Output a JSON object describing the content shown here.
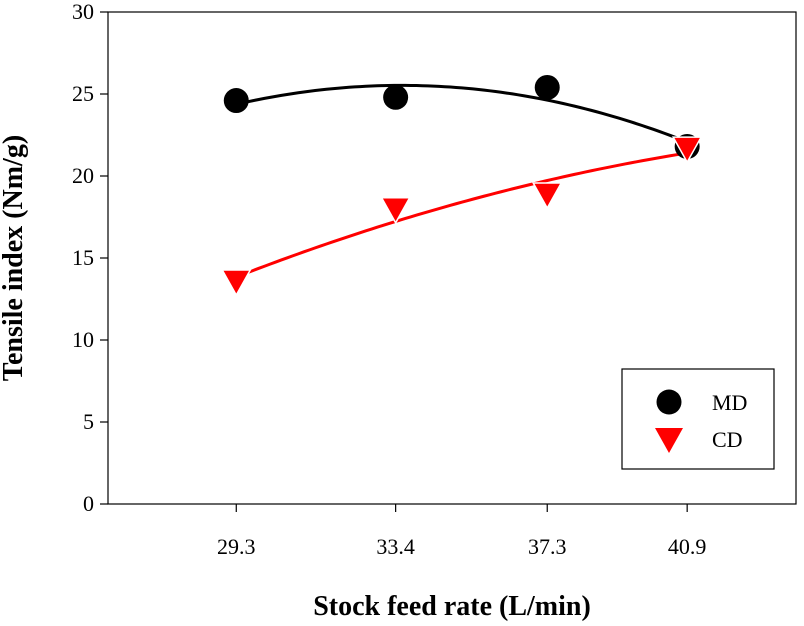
{
  "chart_data": {
    "type": "scatter",
    "xlabel": "Stock feed rate (L/min)",
    "ylabel": "Tensile index (Nm/g)",
    "categories": [
      "29.3",
      "33.4",
      "37.3",
      "40.9"
    ],
    "x": [
      29.3,
      33.4,
      37.3,
      40.9
    ],
    "ylim": [
      0,
      30
    ],
    "yticks": [
      0,
      5,
      10,
      15,
      20,
      25,
      30
    ],
    "xlim": [
      26.0,
      43.7
    ],
    "grid": false,
    "legend_position": "lower-right",
    "series": [
      {
        "name": "MD",
        "marker": "circle",
        "color": "#000000",
        "values": [
          24.6,
          24.8,
          25.4,
          21.8
        ],
        "trend": "quadratic"
      },
      {
        "name": "CD",
        "marker": "triangle-down",
        "color": "#ff0000",
        "values": [
          13.6,
          18.0,
          18.9,
          21.7
        ],
        "trend": "quadratic"
      }
    ]
  }
}
